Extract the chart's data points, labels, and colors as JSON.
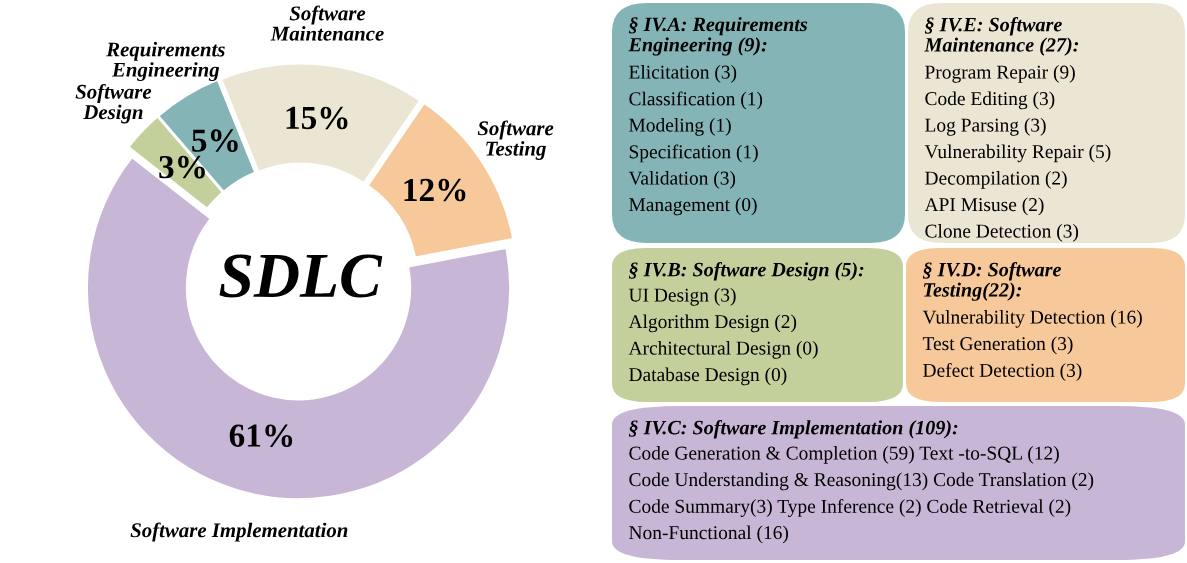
{
  "chart_data": [
    {
      "type": "donut",
      "title": "SDLC",
      "categories": [
        "Software Maintenance",
        "Software Testing",
        "Software Implementation",
        "Software Design",
        "Requirements Engineering"
      ],
      "values": [
        15,
        12,
        61,
        3,
        5
      ],
      "colors": [
        "#ebe6d3",
        "#f7c99a",
        "#c8b6d6",
        "#c3d09c",
        "#85b4b6"
      ],
      "value_labels": [
        "15%",
        "12%",
        "61%",
        "3%",
        "5%"
      ],
      "legend": false
    },
    {
      "type": "other",
      "title": "§ IV.A: Requirements\nEngineering (9):",
      "color": "#85b4b6",
      "annotations": [
        "Elicitation (3)",
        "Classification (1)",
        "Modeling (1)",
        "Specification (1)",
        "Validation (3)",
        "Management (0)"
      ]
    },
    {
      "type": "other",
      "title": "§ IV.E: Software\nMaintenance (27):",
      "color": "#ebe6d3",
      "annotations": [
        "Program Repair (9)",
        "Code Editing (3)",
        "Log Parsing (3)",
        "Vulnerability Repair (5)",
        "Decompilation (2)",
        "API Misuse (2)",
        "Clone Detection (3)"
      ]
    },
    {
      "type": "other",
      "title": "§ IV.B: Software Design (5):",
      "color": "#c3d09c",
      "annotations": [
        "UI Design (3)",
        "Algorithm Design (2)",
        "Architectural Design (0)",
        "Database Design (0)"
      ]
    },
    {
      "type": "other",
      "title": "§ IV.D: Software\nTesting(22):",
      "color": "#f7c99a",
      "annotations": [
        "Vulnerability Detection (16)",
        "Test Generation (3)",
        "Defect Detection (3)"
      ]
    },
    {
      "type": "other",
      "title": "§ IV.C: Software Implementation (109):",
      "color": "#c8b6d6",
      "annotations": [
        "Code Generation & Completion (59) Text -to-SQL (12)",
        "Code Understanding & Reasoning(13) Code Translation (2)",
        "Code Summary(3) Type Inference (2) Code Retrieval (2)",
        "Non-Functional (16)"
      ]
    }
  ]
}
